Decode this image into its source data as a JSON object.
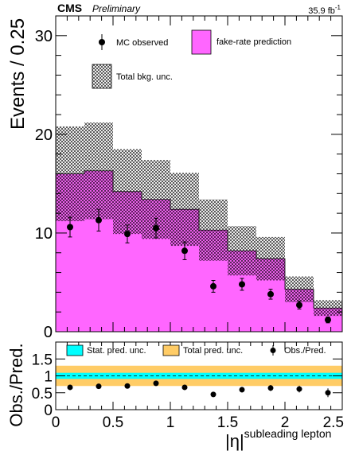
{
  "header": {
    "experiment": "CMS",
    "status": "Preliminary",
    "lumi": "35.9 fb",
    "lumi_exponent": "-1"
  },
  "colors": {
    "prediction_fill": "#ff66ff",
    "stat_unc_fill": "#00ffff",
    "total_unc_fill": "#ffcc66"
  },
  "chart_data": [
    {
      "type": "histogram",
      "panel": "main",
      "ylabel": "Events / 0.25",
      "xlim": [
        0,
        2.5
      ],
      "ylim": [
        0,
        32
      ],
      "yticks": [
        0,
        10,
        20,
        30
      ],
      "bin_edges": [
        0,
        0.25,
        0.5,
        0.75,
        1.0,
        1.25,
        1.5,
        1.75,
        2.0,
        2.25,
        2.5
      ],
      "legend": {
        "observed": "MC observed",
        "prediction": "fake-rate prediction",
        "total_unc": "Total bkg. unc."
      },
      "prediction_values": [
        16.0,
        16.3,
        14.2,
        13.4,
        12.4,
        10.3,
        8.2,
        7.4,
        4.3,
        2.4
      ],
      "prediction_unc": [
        4.8,
        4.9,
        4.3,
        4.0,
        3.7,
        3.1,
        2.5,
        2.2,
        1.3,
        0.8
      ],
      "observed": {
        "x": [
          0.125,
          0.375,
          0.625,
          0.875,
          1.125,
          1.375,
          1.625,
          1.875,
          2.125,
          2.375
        ],
        "y": [
          10.6,
          11.3,
          9.9,
          10.5,
          8.2,
          4.6,
          4.8,
          3.8,
          2.7,
          1.2
        ],
        "yerr": [
          1.0,
          1.1,
          0.9,
          1.0,
          0.9,
          0.6,
          0.6,
          0.5,
          0.4,
          0.3
        ]
      }
    },
    {
      "type": "scatter",
      "panel": "ratio",
      "ylabel": "Obs./Pred.",
      "xlabel": "|η|",
      "xlabel_subscript": "subleading lepton",
      "xlim": [
        0,
        2.5
      ],
      "ylim": [
        0,
        2
      ],
      "yticks": [
        0,
        0.5,
        1,
        1.5
      ],
      "xticks": [
        0,
        0.5,
        1,
        1.5,
        2,
        2.5
      ],
      "legend": {
        "stat_unc": "Stat. pred. unc.",
        "total_unc": "Total pred. unc.",
        "ratio": "Obs./Pred."
      },
      "stat_unc_band": [
        0.91,
        1.09
      ],
      "total_unc_band": [
        0.7,
        1.3
      ],
      "ratio": {
        "x": [
          0.125,
          0.375,
          0.625,
          0.875,
          1.125,
          1.375,
          1.625,
          1.875,
          2.125,
          2.375
        ],
        "y": [
          0.66,
          0.69,
          0.7,
          0.78,
          0.66,
          0.45,
          0.59,
          0.64,
          0.61,
          0.5
        ],
        "yerr": [
          0.06,
          0.07,
          0.07,
          0.07,
          0.07,
          0.06,
          0.08,
          0.09,
          0.1,
          0.13
        ]
      }
    }
  ]
}
